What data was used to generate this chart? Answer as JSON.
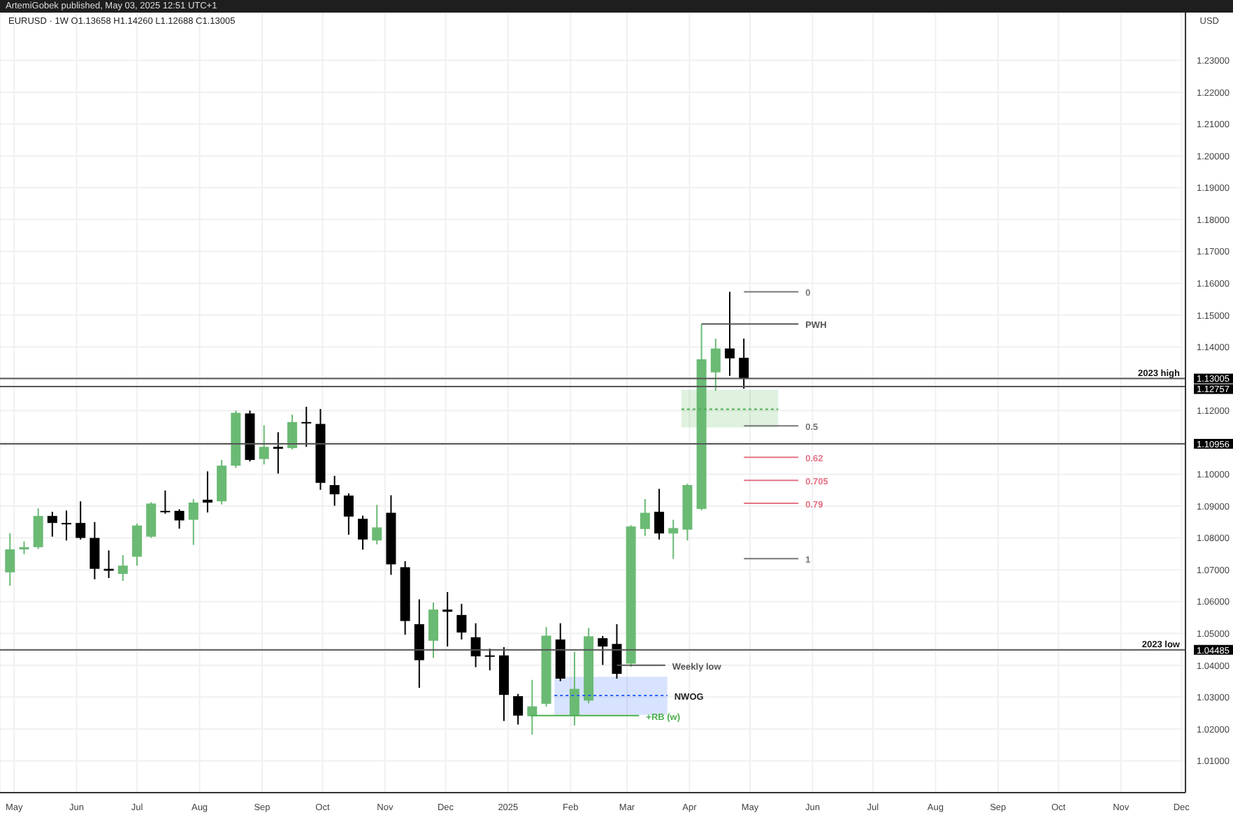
{
  "chart_data": {
    "type": "candlestick",
    "title": "EURUSD · 1W  O1.13658 H1.14260 L1.12688 C1.13005",
    "subtitle": "ArtemiGobek published, May 03, 2025 12:51 UTC+1",
    "ylabel": "USD",
    "x": [
      "2024-04-29",
      "2024-05-06",
      "2024-05-13",
      "2024-05-20",
      "2024-05-27",
      "2024-06-03",
      "2024-06-10",
      "2024-06-17",
      "2024-06-24",
      "2024-07-01",
      "2024-07-08",
      "2024-07-15",
      "2024-07-22",
      "2024-07-29",
      "2024-08-05",
      "2024-08-12",
      "2024-08-19",
      "2024-08-26",
      "2024-09-02",
      "2024-09-09",
      "2024-09-16",
      "2024-09-23",
      "2024-09-30",
      "2024-10-07",
      "2024-10-14",
      "2024-10-21",
      "2024-10-28",
      "2024-11-04",
      "2024-11-11",
      "2024-11-18",
      "2024-11-25",
      "2024-12-02",
      "2024-12-09",
      "2024-12-16",
      "2024-12-23",
      "2024-12-30",
      "2025-01-06",
      "2025-01-13",
      "2025-01-20",
      "2025-01-27",
      "2025-02-03",
      "2025-02-10",
      "2025-02-17",
      "2025-02-24",
      "2025-03-03",
      "2025-03-10",
      "2025-03-17",
      "2025-03-24",
      "2025-03-31",
      "2025-04-07",
      "2025-04-14",
      "2025-04-21",
      "2025-04-28"
    ],
    "ohlc": [
      [
        1.0692,
        1.0815,
        1.065,
        1.0764
      ],
      [
        1.0764,
        1.0789,
        1.0749,
        1.0771
      ],
      [
        1.0771,
        1.0893,
        1.0765,
        1.0869
      ],
      [
        1.0869,
        1.0882,
        1.0804,
        1.0847
      ],
      [
        1.0847,
        1.0886,
        1.0792,
        1.0845
      ],
      [
        1.0847,
        1.0915,
        1.0795,
        1.08
      ],
      [
        1.08,
        1.085,
        1.067,
        1.0703
      ],
      [
        1.0703,
        1.0761,
        1.0674,
        1.0697
      ],
      [
        1.0687,
        1.0746,
        1.0665,
        1.0713
      ],
      [
        1.0741,
        1.0845,
        1.0713,
        1.0839
      ],
      [
        1.0804,
        1.0912,
        1.08,
        1.0908
      ],
      [
        1.0885,
        1.0949,
        1.0876,
        1.0882
      ],
      [
        1.0885,
        1.089,
        1.0829,
        1.0855
      ],
      [
        1.0857,
        1.0922,
        1.0778,
        1.0911
      ],
      [
        1.092,
        1.1009,
        1.088,
        1.0911
      ],
      [
        1.0915,
        1.1045,
        1.0905,
        1.1027
      ],
      [
        1.1027,
        1.12,
        1.102,
        1.1193
      ],
      [
        1.1191,
        1.12,
        1.104,
        1.1045
      ],
      [
        1.1048,
        1.1154,
        1.1031,
        1.1086
      ],
      [
        1.1086,
        1.1132,
        1.1002,
        1.108
      ],
      [
        1.1082,
        1.1187,
        1.1078,
        1.1164
      ],
      [
        1.1164,
        1.1212,
        1.1086,
        1.1162
      ],
      [
        1.1158,
        1.1205,
        1.0951,
        1.0973
      ],
      [
        1.0966,
        1.0995,
        1.0901,
        1.0937
      ],
      [
        1.0933,
        1.094,
        1.081,
        1.0867
      ],
      [
        1.086,
        1.087,
        1.0763,
        1.0795
      ],
      [
        1.0792,
        1.0904,
        1.078,
        1.0833
      ],
      [
        1.0879,
        1.0934,
        1.0684,
        1.0717
      ],
      [
        1.0708,
        1.0727,
        1.0496,
        1.0539
      ],
      [
        1.0529,
        1.0607,
        1.0329,
        1.0416
      ],
      [
        1.0477,
        1.0597,
        1.0423,
        1.0575
      ],
      [
        1.0575,
        1.063,
        1.0459,
        1.0568
      ],
      [
        1.0558,
        1.0593,
        1.0481,
        1.0503
      ],
      [
        1.0488,
        1.0532,
        1.0394,
        1.0428
      ],
      [
        1.0431,
        1.0452,
        1.0384,
        1.0429
      ],
      [
        1.0431,
        1.0457,
        1.0225,
        1.0307
      ],
      [
        1.0303,
        1.031,
        1.0214,
        1.0242
      ],
      [
        1.024,
        1.0354,
        1.0182,
        1.0271
      ],
      [
        1.0279,
        1.052,
        1.027,
        1.0493
      ],
      [
        1.0481,
        1.0532,
        1.035,
        1.0358
      ],
      [
        1.0242,
        1.0442,
        1.0211,
        1.0326
      ],
      [
        1.0289,
        1.0517,
        1.028,
        1.0491
      ],
      [
        1.0485,
        1.0492,
        1.0401,
        1.0459
      ],
      [
        1.0467,
        1.0529,
        1.0358,
        1.0373
      ],
      [
        1.0405,
        1.084,
        1.0395,
        1.0836
      ],
      [
        1.0828,
        1.0922,
        1.0806,
        1.0879
      ],
      [
        1.0882,
        1.0954,
        1.0795,
        1.0814
      ],
      [
        1.0814,
        1.0857,
        1.0734,
        1.0831
      ],
      [
        1.0826,
        1.097,
        1.0792,
        1.0966
      ],
      [
        1.0891,
        1.1472,
        1.0887,
        1.1361
      ],
      [
        1.132,
        1.1426,
        1.1262,
        1.1395
      ],
      [
        1.1395,
        1.1573,
        1.1309,
        1.1364
      ],
      [
        1.13658,
        1.1426,
        1.12688,
        1.13005
      ]
    ],
    "colors": [
      "#6aba74",
      "#6aba74",
      "#6aba74",
      "#000000",
      "#000000",
      "#000000",
      "#000000",
      "#000000",
      "#6aba74",
      "#6aba74",
      "#6aba74",
      "#000000",
      "#000000",
      "#6aba74",
      "#000000",
      "#6aba74",
      "#6aba74",
      "#000000",
      "#6aba74",
      "#000000",
      "#6aba74",
      "#000000",
      "#000000",
      "#000000",
      "#000000",
      "#000000",
      "#6aba74",
      "#000000",
      "#000000",
      "#000000",
      "#6aba74",
      "#000000",
      "#000000",
      "#000000",
      "#000000",
      "#000000",
      "#000000",
      "#6aba74",
      "#6aba74",
      "#000000",
      "#6aba74",
      "#6aba74",
      "#000000",
      "#000000",
      "#6aba74",
      "#6aba74",
      "#000000",
      "#6aba74",
      "#6aba74",
      "#6aba74",
      "#6aba74",
      "#000000",
      "#000000"
    ],
    "series": [
      {
        "type": "line",
        "name": "NWOG",
        "color": "#2962ff",
        "line_style": "dotted",
        "x": [
          "2025-01-24",
          "2025-03-21"
        ],
        "values": [
          1.0305,
          1.0305
        ],
        "lower": [
          1.0244,
          1.0244
        ],
        "upper": [
          1.0364,
          1.0364
        ]
      },
      {
        "type": "line",
        "color": "#4caf50",
        "line_style": "dotted",
        "x": [
          "2025-03-28",
          "2025-05-15"
        ],
        "values": [
          1.1204,
          1.1204
        ],
        "lower": [
          1.1147,
          1.1147
        ],
        "upper": [
          1.1265,
          1.1265
        ]
      },
      {
        "type": "line",
        "name": "0",
        "color": "#777777",
        "x": [
          "2025-04-28",
          "2025-05-25"
        ],
        "values": [
          1.1573,
          1.1573
        ]
      },
      {
        "type": "line",
        "name": "PWH",
        "color": "#555555",
        "x": [
          "2025-04-07",
          "2025-05-25"
        ],
        "values": [
          1.1472,
          1.1472
        ]
      },
      {
        "type": "line",
        "name": "0.5",
        "color": "#777777",
        "x": [
          "2025-04-28",
          "2025-05-25"
        ],
        "values": [
          1.1152,
          1.1152
        ]
      },
      {
        "type": "line",
        "name": "0.62",
        "color": "#e57385",
        "x": [
          "2025-04-28",
          "2025-05-25"
        ],
        "values": [
          1.1053,
          1.1053
        ]
      },
      {
        "type": "line",
        "name": "0.705",
        "color": "#e57385",
        "x": [
          "2025-04-28",
          "2025-05-25"
        ],
        "values": [
          1.0981,
          1.0981
        ]
      },
      {
        "type": "line",
        "name": "0.79",
        "color": "#e57385",
        "x": [
          "2025-04-28",
          "2025-05-25"
        ],
        "values": [
          1.0909,
          1.0909
        ]
      },
      {
        "type": "line",
        "name": "1",
        "color": "#777777",
        "x": [
          "2025-04-28",
          "2025-05-25"
        ],
        "values": [
          1.0735,
          1.0735
        ]
      },
      {
        "type": "line",
        "name": "Weekly low",
        "color": "#555555",
        "x": [
          "2025-02-24",
          "2025-03-20"
        ],
        "values": [
          1.04,
          1.04
        ]
      },
      {
        "type": "line",
        "name": "+RB (w)",
        "color": "#4caf50",
        "x": [
          "2025-01-12",
          "2025-03-07"
        ],
        "values": [
          1.0242,
          1.0242
        ]
      }
    ],
    "ref_lines": [
      {
        "axis": "y",
        "value": 1.13005,
        "label": "2023 high",
        "color": "#555555"
      },
      {
        "axis": "y",
        "value": 1.12757,
        "color": "#555555"
      },
      {
        "axis": "y",
        "value": 1.10956,
        "color": "#555555"
      },
      {
        "axis": "y",
        "value": 1.04485,
        "label": "2023 low",
        "color": "#555555"
      }
    ],
    "xlim": [
      "2024-04-24",
      "2025-12-03"
    ],
    "xticks": [
      {
        "value": "2024-05-01",
        "label": "May"
      },
      {
        "value": "2024-06-01",
        "label": "Jun"
      },
      {
        "value": "2024-07-01",
        "label": "Jul"
      },
      {
        "value": "2024-08-01",
        "label": "Aug"
      },
      {
        "value": "2024-09-01",
        "label": "Sep"
      },
      {
        "value": "2024-10-01",
        "label": "Oct"
      },
      {
        "value": "2024-11-01",
        "label": "Nov"
      },
      {
        "value": "2024-12-01",
        "label": "Dec"
      },
      {
        "value": "2025-01-01",
        "label": "2025"
      },
      {
        "value": "2025-02-01",
        "label": "Feb"
      },
      {
        "value": "2025-03-01",
        "label": "Mar"
      },
      {
        "value": "2025-04-01",
        "label": "Apr"
      },
      {
        "value": "2025-05-01",
        "label": "May"
      },
      {
        "value": "2025-06-01",
        "label": "Jun"
      },
      {
        "value": "2025-07-01",
        "label": "Jul"
      },
      {
        "value": "2025-08-01",
        "label": "Aug"
      },
      {
        "value": "2025-09-01",
        "label": "Sep"
      },
      {
        "value": "2025-10-01",
        "label": "Oct"
      },
      {
        "value": "2025-11-01",
        "label": "Nov"
      },
      {
        "value": "2025-12-01",
        "label": "Dec"
      }
    ],
    "ylim": [
      1.0,
      1.245
    ],
    "yticks": [
      {
        "value": 1.01,
        "label": "1.01000"
      },
      {
        "value": 1.02,
        "label": "1.02000"
      },
      {
        "value": 1.03,
        "label": "1.03000"
      },
      {
        "value": 1.04,
        "label": "1.04000"
      },
      {
        "value": 1.04485,
        "label": "1.04485"
      },
      {
        "value": 1.05,
        "label": "1.05000"
      },
      {
        "value": 1.06,
        "label": "1.06000"
      },
      {
        "value": 1.07,
        "label": "1.07000"
      },
      {
        "value": 1.08,
        "label": "1.08000"
      },
      {
        "value": 1.09,
        "label": "1.09000"
      },
      {
        "value": 1.1,
        "label": "1.10000"
      },
      {
        "value": 1.10956,
        "label": "1.10956"
      },
      {
        "value": 1.11,
        "label": null
      },
      {
        "value": 1.12,
        "label": "1.12000"
      },
      {
        "value": 1.12757,
        "label": "1.12757"
      },
      {
        "value": 1.13,
        "label": null
      },
      {
        "value": 1.13005,
        "label": "1.13005"
      },
      {
        "value": 1.14,
        "label": "1.14000"
      },
      {
        "value": 1.15,
        "label": "1.15000"
      },
      {
        "value": 1.16,
        "label": "1.16000"
      },
      {
        "value": 1.17,
        "label": "1.17000"
      },
      {
        "value": 1.18,
        "label": "1.18000"
      },
      {
        "value": 1.19,
        "label": "1.19000"
      },
      {
        "value": 1.2,
        "label": "1.20000"
      },
      {
        "value": 1.21,
        "label": "1.21000"
      },
      {
        "value": 1.22,
        "label": "1.22000"
      },
      {
        "value": 1.23,
        "label": "1.23000"
      }
    ],
    "grid": true
  }
}
